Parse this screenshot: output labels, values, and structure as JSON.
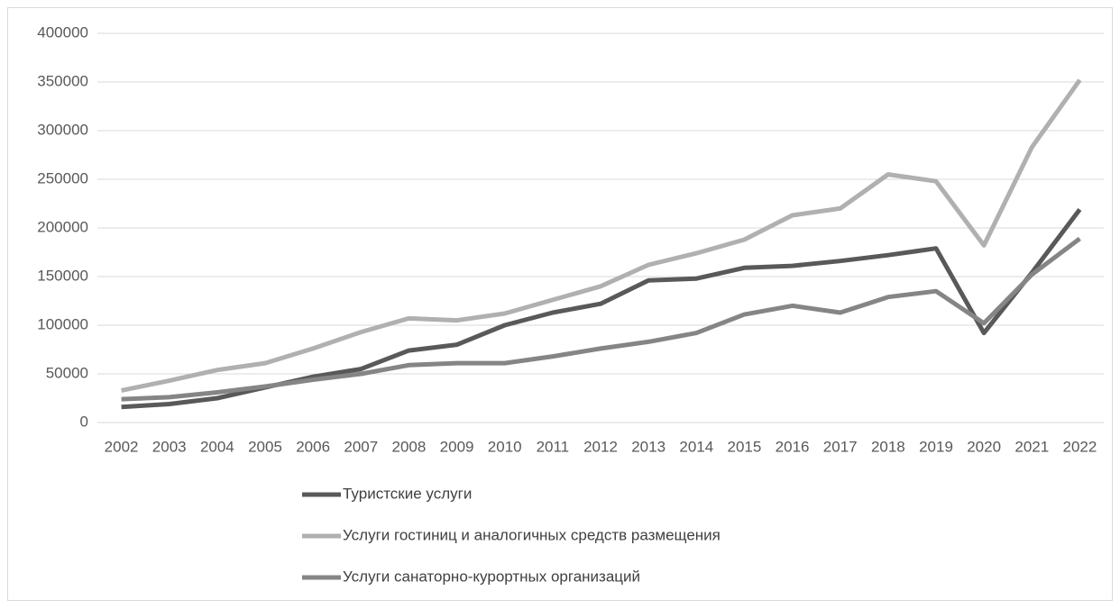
{
  "chart_data": {
    "type": "line",
    "categories": [
      "2002",
      "2003",
      "2004",
      "2005",
      "2006",
      "2007",
      "2008",
      "2009",
      "2010",
      "2011",
      "2012",
      "2013",
      "2014",
      "2015",
      "2016",
      "2017",
      "2018",
      "2019",
      "2020",
      "2021",
      "2022"
    ],
    "series": [
      {
        "name": "Туристские услуги",
        "color": "#595959",
        "values": [
          16000,
          19000,
          25000,
          36000,
          47000,
          55000,
          74000,
          80000,
          100000,
          113000,
          122000,
          146000,
          148000,
          159000,
          161000,
          166000,
          172000,
          179000,
          92000,
          154000,
          219000
        ]
      },
      {
        "name": "Услуги гостиниц и аналогичных средств размещения",
        "color": "#b0b0b0",
        "values": [
          33000,
          43000,
          54000,
          61000,
          76000,
          93000,
          107000,
          105000,
          112000,
          126000,
          140000,
          162000,
          174000,
          188000,
          213000,
          220000,
          255000,
          248000,
          182000,
          283000,
          352000
        ]
      },
      {
        "name": "Услуги санаторно-курортных организаций",
        "color": "#858585",
        "values": [
          24000,
          26000,
          31000,
          37000,
          44000,
          50000,
          59000,
          61000,
          61000,
          68000,
          76000,
          83000,
          92000,
          111000,
          120000,
          113000,
          129000,
          135000,
          102000,
          152000,
          189000
        ]
      }
    ],
    "ylim": [
      0,
      400000
    ],
    "yticks": [
      0,
      50000,
      100000,
      150000,
      200000,
      250000,
      300000,
      350000,
      400000
    ],
    "grid": true,
    "legend": "bottom"
  }
}
